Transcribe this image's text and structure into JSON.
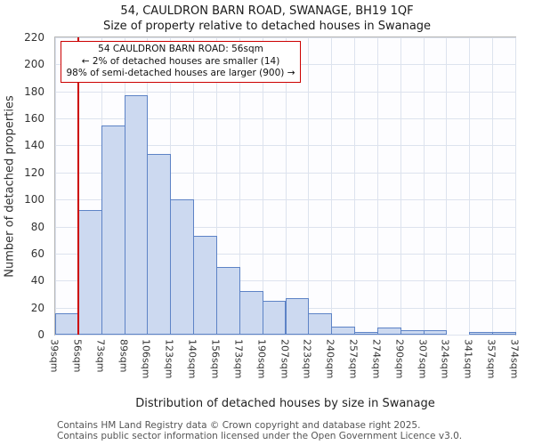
{
  "title": "54, CAULDRON BARN ROAD, SWANAGE, BH19 1QF",
  "subtitle": "Size of property relative to detached houses in Swanage",
  "chart_data": {
    "type": "bar",
    "categories": [
      "39sqm",
      "56sqm",
      "73sqm",
      "89sqm",
      "106sqm",
      "123sqm",
      "140sqm",
      "156sqm",
      "173sqm",
      "190sqm",
      "207sqm",
      "223sqm",
      "240sqm",
      "257sqm",
      "274sqm",
      "290sqm",
      "307sqm",
      "324sqm",
      "341sqm",
      "357sqm",
      "374sqm"
    ],
    "bin_edges_sqm": [
      39,
      56,
      73,
      89,
      106,
      123,
      140,
      156,
      173,
      190,
      207,
      223,
      240,
      257,
      274,
      290,
      307,
      324,
      341,
      357,
      374
    ],
    "values": [
      16,
      92,
      155,
      177,
      134,
      100,
      73,
      50,
      32,
      25,
      27,
      16,
      6,
      2,
      5,
      3,
      3,
      0,
      2,
      2
    ],
    "title": "Size of property relative to detached houses in Swanage",
    "xlabel": "Distribution of detached houses by size in Swanage",
    "ylabel": "Number of detached properties",
    "ylim": [
      0,
      220
    ],
    "ytick_step": 20,
    "grid": true,
    "legend": "none",
    "bar_fill": "#ccd9f0",
    "bar_border": "#5d83c6",
    "marker_value_sqm": 56,
    "marker_color": "#cc0000"
  },
  "annotation": {
    "line1": "54 CAULDRON BARN ROAD: 56sqm",
    "line2": "← 2% of detached houses are smaller (14)",
    "line3": "98% of semi-detached houses are larger (900) →"
  },
  "footer": {
    "line1": "Contains HM Land Registry data © Crown copyright and database right 2025.",
    "line2": "Contains public sector information licensed under the Open Government Licence v3.0."
  }
}
